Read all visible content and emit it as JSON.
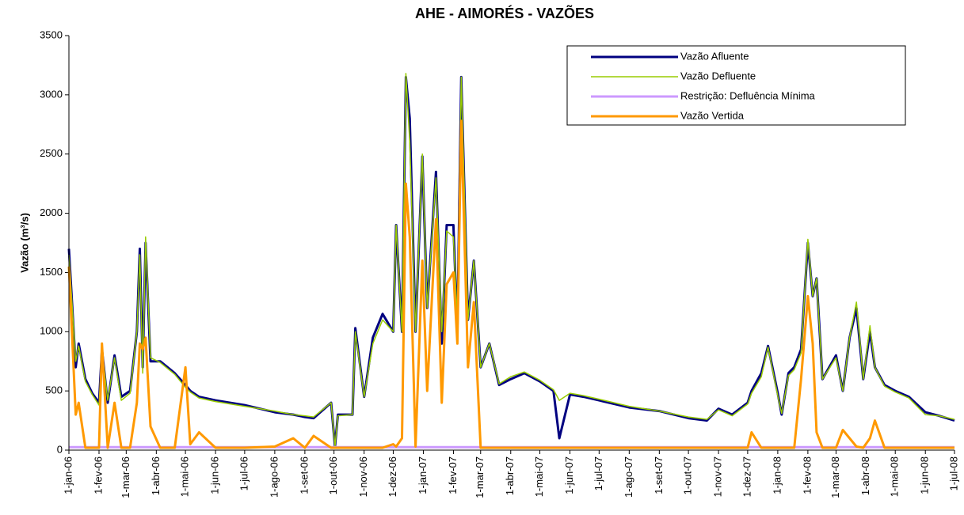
{
  "chart_data": {
    "type": "line",
    "title": "AHE - AIMORÉS - VAZÕES",
    "y_label": "Vazão (m³/s)",
    "x": [
      "2006-01-01",
      "2006-01-08",
      "2006-01-11",
      "2006-01-18",
      "2006-01-25",
      "2006-02-01",
      "2006-02-04",
      "2006-02-10",
      "2006-02-17",
      "2006-02-24",
      "2006-03-05",
      "2006-03-12",
      "2006-03-15",
      "2006-03-18",
      "2006-03-21",
      "2006-03-26",
      "2006-04-05",
      "2006-04-20",
      "2006-05-01",
      "2006-05-06",
      "2006-05-15",
      "2006-06-01",
      "2006-07-01",
      "2006-08-01",
      "2006-08-20",
      "2006-09-01",
      "2006-09-10",
      "2006-09-28",
      "2006-10-02",
      "2006-10-05",
      "2006-10-20",
      "2006-10-23",
      "2006-11-01",
      "2006-11-10",
      "2006-11-20",
      "2006-12-01",
      "2006-12-04",
      "2006-12-10",
      "2006-12-14",
      "2006-12-18",
      "2006-12-24",
      "2006-12-31",
      "2007-01-05",
      "2007-01-14",
      "2007-01-20",
      "2007-01-25",
      "2007-02-01",
      "2007-02-05",
      "2007-02-09",
      "2007-02-16",
      "2007-02-22",
      "2007-03-01",
      "2007-03-10",
      "2007-03-20",
      "2007-04-01",
      "2007-04-15",
      "2007-05-01",
      "2007-05-15",
      "2007-05-21",
      "2007-06-01",
      "2007-06-15",
      "2007-07-01",
      "2007-08-01",
      "2007-09-01",
      "2007-10-01",
      "2007-10-20",
      "2007-11-01",
      "2007-11-15",
      "2007-12-01",
      "2007-12-05",
      "2007-12-15",
      "2007-12-22",
      "2008-01-01",
      "2008-01-05",
      "2008-01-12",
      "2008-01-18",
      "2008-01-25",
      "2008-02-01",
      "2008-02-06",
      "2008-02-10",
      "2008-02-16",
      "2008-03-01",
      "2008-03-08",
      "2008-03-15",
      "2008-03-22",
      "2008-03-29",
      "2008-04-05",
      "2008-04-10",
      "2008-04-20",
      "2008-05-01",
      "2008-05-15",
      "2008-06-01",
      "2008-06-15",
      "2008-07-01"
    ],
    "series": [
      {
        "name": "Vazão Afluente",
        "color": "#000080",
        "width": 3,
        "values": [
          1700,
          700,
          900,
          600,
          480,
          400,
          850,
          400,
          800,
          450,
          500,
          1000,
          1700,
          700,
          1750,
          750,
          750,
          650,
          550,
          500,
          450,
          420,
          380,
          320,
          300,
          280,
          270,
          400,
          30,
          300,
          300,
          1030,
          450,
          950,
          1150,
          1000,
          1900,
          1000,
          3150,
          2800,
          1000,
          2480,
          1200,
          2350,
          900,
          1900,
          1900,
          1000,
          3150,
          1100,
          1600,
          700,
          900,
          550,
          600,
          650,
          580,
          500,
          100,
          470,
          450,
          420,
          360,
          330,
          270,
          250,
          350,
          300,
          400,
          500,
          650,
          880,
          480,
          300,
          650,
          700,
          850,
          1750,
          1300,
          1450,
          600,
          800,
          500,
          950,
          1200,
          600,
          1000,
          700,
          550,
          500,
          450,
          320,
          290,
          250
        ]
      },
      {
        "name": "Vazão Defluente",
        "color": "#99cc00",
        "width": 1.5,
        "values": [
          1650,
          750,
          880,
          580,
          470,
          380,
          850,
          420,
          780,
          420,
          480,
          1000,
          1650,
          650,
          1800,
          780,
          740,
          640,
          530,
          490,
          440,
          410,
          370,
          330,
          300,
          290,
          280,
          400,
          30,
          290,
          300,
          1000,
          450,
          900,
          1100,
          1000,
          1900,
          1000,
          3180,
          2600,
          1000,
          2500,
          1200,
          2300,
          1000,
          1850,
          1800,
          1100,
          3150,
          1100,
          1600,
          700,
          900,
          560,
          620,
          660,
          590,
          510,
          420,
          480,
          460,
          430,
          370,
          330,
          280,
          260,
          340,
          290,
          390,
          480,
          620,
          870,
          460,
          310,
          630,
          680,
          820,
          1780,
          1300,
          1450,
          600,
          780,
          500,
          950,
          1250,
          600,
          1050,
          700,
          540,
          490,
          440,
          300,
          290,
          260
        ]
      },
      {
        "name": "Restrição: Defluência Mínima",
        "color": "#cc99ff",
        "width": 3,
        "values": [
          25,
          25,
          25,
          25,
          25,
          25,
          25,
          25,
          25,
          25,
          25,
          25,
          25,
          25,
          25,
          25,
          25,
          25,
          25,
          25,
          25,
          25,
          25,
          25,
          25,
          25,
          25,
          25,
          25,
          25,
          25,
          25,
          25,
          25,
          25,
          25,
          25,
          25,
          25,
          25,
          25,
          25,
          25,
          25,
          25,
          25,
          25,
          25,
          25,
          25,
          25,
          25,
          25,
          25,
          25,
          25,
          25,
          25,
          25,
          25,
          25,
          25,
          25,
          25,
          25,
          25,
          25,
          25,
          25,
          25,
          25,
          25,
          25,
          25,
          25,
          25,
          25,
          25,
          25,
          25,
          25,
          25,
          25,
          25,
          25,
          25,
          25,
          25,
          25,
          25,
          25,
          25,
          25,
          25
        ]
      },
      {
        "name": "Vazão Vertida",
        "color": "#ff9900",
        "width": 3,
        "values": [
          1550,
          300,
          400,
          20,
          20,
          20,
          900,
          20,
          400,
          20,
          20,
          400,
          900,
          850,
          950,
          200,
          20,
          20,
          700,
          50,
          150,
          20,
          20,
          30,
          100,
          20,
          120,
          20,
          20,
          20,
          20,
          20,
          20,
          20,
          20,
          50,
          30,
          100,
          2250,
          1800,
          30,
          1600,
          500,
          1950,
          400,
          1400,
          1500,
          900,
          2780,
          700,
          1250,
          20,
          20,
          20,
          20,
          20,
          20,
          20,
          20,
          20,
          20,
          20,
          20,
          20,
          20,
          20,
          20,
          20,
          20,
          150,
          20,
          20,
          20,
          20,
          20,
          20,
          600,
          1300,
          900,
          150,
          20,
          20,
          170,
          100,
          30,
          20,
          100,
          250,
          20,
          20,
          20,
          20,
          20,
          20
        ]
      }
    ],
    "xlim": [
      "2006-01-01",
      "2008-07-01"
    ],
    "xticks": [
      {
        "value": "2006-01-01",
        "label": "1-jan-06"
      },
      {
        "value": "2006-02-01",
        "label": "1-fev-06"
      },
      {
        "value": "2006-03-01",
        "label": "1-mar-06"
      },
      {
        "value": "2006-04-01",
        "label": "1-abr-06"
      },
      {
        "value": "2006-05-01",
        "label": "1-mai-06"
      },
      {
        "value": "2006-06-01",
        "label": "1-jun-06"
      },
      {
        "value": "2006-07-01",
        "label": "1-jul-06"
      },
      {
        "value": "2006-08-01",
        "label": "1-ago-06"
      },
      {
        "value": "2006-09-01",
        "label": "1-set-06"
      },
      {
        "value": "2006-10-01",
        "label": "1-out-06"
      },
      {
        "value": "2006-11-01",
        "label": "1-nov-06"
      },
      {
        "value": "2006-12-01",
        "label": "1-dez-06"
      },
      {
        "value": "2007-01-01",
        "label": "1-jan-07"
      },
      {
        "value": "2007-02-01",
        "label": "1-fev-07"
      },
      {
        "value": "2007-03-01",
        "label": "1-mar-07"
      },
      {
        "value": "2007-04-01",
        "label": "1-abr-07"
      },
      {
        "value": "2007-05-01",
        "label": "1-mai-07"
      },
      {
        "value": "2007-06-01",
        "label": "1-jun-07"
      },
      {
        "value": "2007-07-01",
        "label": "1-jul-07"
      },
      {
        "value": "2007-08-01",
        "label": "1-ago-07"
      },
      {
        "value": "2007-09-01",
        "label": "1-set-07"
      },
      {
        "value": "2007-10-01",
        "label": "1-out-07"
      },
      {
        "value": "2007-11-01",
        "label": "1-nov-07"
      },
      {
        "value": "2007-12-01",
        "label": "1-dez-07"
      },
      {
        "value": "2008-01-01",
        "label": "1-jan-08"
      },
      {
        "value": "2008-02-01",
        "label": "1-fev-08"
      },
      {
        "value": "2008-03-01",
        "label": "1-mar-08"
      },
      {
        "value": "2008-04-01",
        "label": "1-abr-08"
      },
      {
        "value": "2008-05-01",
        "label": "1-mai-08"
      },
      {
        "value": "2008-06-01",
        "label": "1-jun-08"
      },
      {
        "value": "2008-07-01",
        "label": "1-jul-08"
      }
    ],
    "ylim": [
      0,
      3500
    ],
    "yticks": [
      0,
      500,
      1000,
      1500,
      2000,
      2500,
      3000,
      3500
    ],
    "legend": "upper right"
  }
}
